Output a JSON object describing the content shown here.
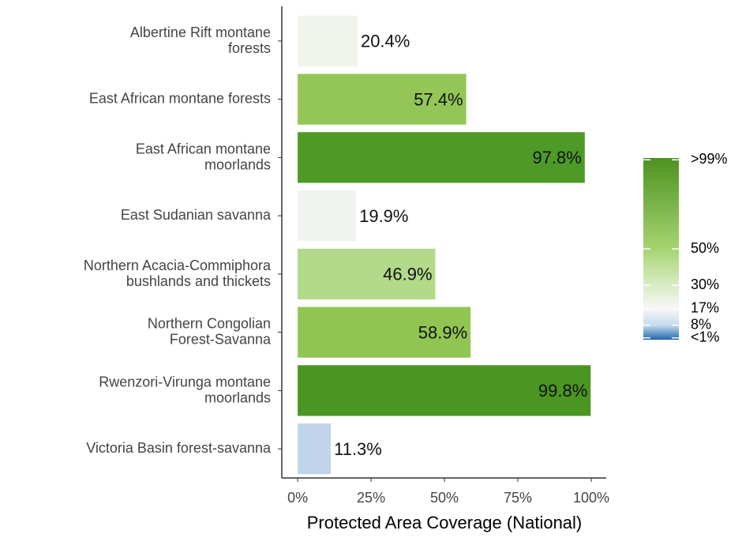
{
  "chart_data": {
    "type": "bar",
    "orientation": "horizontal",
    "categories": [
      "Albertine Rift montane\nforests",
      "East African montane forests",
      "East African montane\nmoorlands",
      "East Sudanian savanna",
      "Northern Acacia-Commiphora\nbushlands and thickets",
      "Northern Congolian\nForest-Savanna",
      "Rwenzori-Virunga montane\nmoorlands",
      "Victoria Basin forest-savanna"
    ],
    "values": [
      20.4,
      57.4,
      97.8,
      19.9,
      46.9,
      58.9,
      99.8,
      11.3
    ],
    "value_labels": [
      "20.4%",
      "57.4%",
      "97.8%",
      "19.9%",
      "46.9%",
      "58.9%",
      "99.8%",
      "11.3%"
    ],
    "colors": [
      "#f1f4ec",
      "#93c656",
      "#4d9a26",
      "#f1f3ee",
      "#b3d98a",
      "#91c553",
      "#4b9523",
      "#c0d5ec"
    ],
    "xlabel": "Protected Area Coverage (National)",
    "xlim": [
      -5.4,
      105.1
    ],
    "xticks": [
      {
        "value": 0,
        "label": "0%"
      },
      {
        "value": 25,
        "label": "25%"
      },
      {
        "value": 50,
        "label": "50%"
      },
      {
        "value": 75,
        "label": "75%"
      },
      {
        "value": 100,
        "label": "100%"
      }
    ],
    "grid": false,
    "colorbar": {
      "lim": [
        0,
        100
      ],
      "ticks": [
        {
          "value": 99,
          "label": ">99%"
        },
        {
          "value": 50,
          "label": "50%"
        },
        {
          "value": 30,
          "label": "30%"
        },
        {
          "value": 17,
          "label": "17%"
        },
        {
          "value": 8,
          "label": "8%"
        },
        {
          "value": 1,
          "label": "<1%"
        }
      ],
      "stops": [
        {
          "value": 0,
          "color": "#2166ac"
        },
        {
          "value": 8,
          "color": "#c6dbef"
        },
        {
          "value": 17,
          "color": "#f7f7f7"
        },
        {
          "value": 30,
          "color": "#d9ecc4"
        },
        {
          "value": 50,
          "color": "#a6d470"
        },
        {
          "value": 100,
          "color": "#4d9221"
        }
      ]
    }
  }
}
